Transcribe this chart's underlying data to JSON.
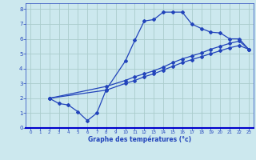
{
  "bg_color": "#cce8ee",
  "grid_color": "#aacccc",
  "line_color": "#2244bb",
  "marker": "D",
  "markersize": 2.0,
  "linewidth": 0.9,
  "xlabel": "Graphe des températures (°c)",
  "xlim": [
    -0.5,
    23.5
  ],
  "ylim": [
    0,
    8.4
  ],
  "xticks": [
    0,
    1,
    2,
    3,
    4,
    5,
    6,
    7,
    8,
    9,
    10,
    11,
    12,
    13,
    14,
    15,
    16,
    17,
    18,
    19,
    20,
    21,
    22,
    23
  ],
  "yticks": [
    0,
    1,
    2,
    3,
    4,
    5,
    6,
    7,
    8
  ],
  "line1_x": [
    2,
    3,
    4,
    5,
    6,
    7,
    8,
    10,
    11,
    12,
    13,
    14,
    15,
    16,
    17,
    18,
    19,
    20,
    21,
    22,
    23
  ],
  "line1_y": [
    2.0,
    1.65,
    1.55,
    1.1,
    0.5,
    1.0,
    2.6,
    4.5,
    5.9,
    7.2,
    7.3,
    7.8,
    7.8,
    7.8,
    7.0,
    6.7,
    6.45,
    6.4,
    6.0,
    6.0,
    5.3
  ],
  "line2_x": [
    2,
    8,
    10,
    11,
    12,
    13,
    14,
    15,
    16,
    17,
    18,
    19,
    20,
    21,
    22,
    23
  ],
  "line2_y": [
    2.0,
    2.8,
    3.2,
    3.45,
    3.65,
    3.85,
    4.1,
    4.4,
    4.65,
    4.85,
    5.05,
    5.3,
    5.5,
    5.7,
    5.85,
    5.3
  ],
  "line3_x": [
    2,
    8,
    10,
    11,
    12,
    13,
    14,
    15,
    16,
    17,
    18,
    19,
    20,
    21,
    22,
    23
  ],
  "line3_y": [
    2.0,
    2.55,
    3.0,
    3.2,
    3.45,
    3.65,
    3.9,
    4.15,
    4.4,
    4.6,
    4.8,
    5.0,
    5.2,
    5.4,
    5.55,
    5.3
  ]
}
